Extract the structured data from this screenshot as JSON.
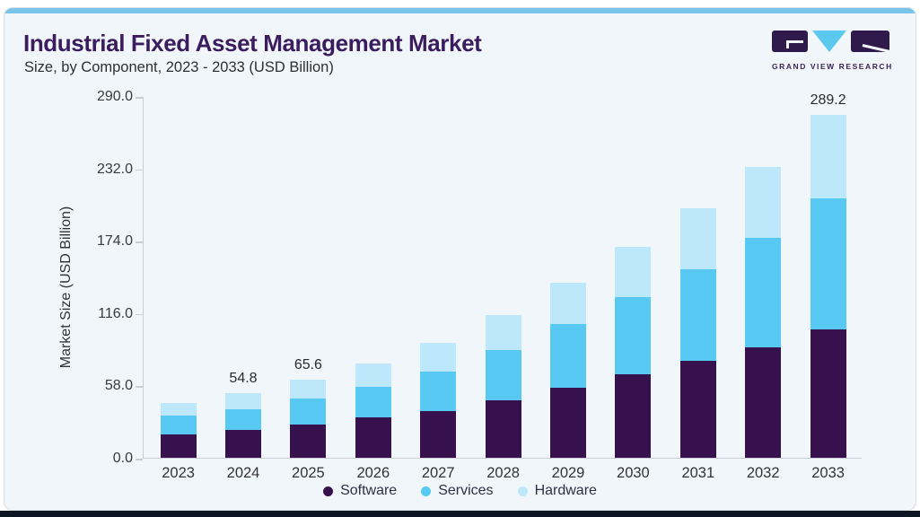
{
  "header": {
    "title": "Industrial Fixed Asset Management Market",
    "subtitle": "Size, by Component, 2023 - 2033 (USD Billion)",
    "logo_text": "GRAND VIEW RESEARCH"
  },
  "colors": {
    "card_background": "#F0F6FA",
    "top_strip": "#79C4E8",
    "bottom_strip": "#0E1522",
    "title": "#3A1C5F",
    "axis_line": "#C9CDD3",
    "software": "#36114E",
    "services": "#58C9F2",
    "hardware": "#BDE7FA"
  },
  "chart_data": {
    "type": "bar",
    "stacked": true,
    "title": "Industrial Fixed Asset Management Market Size, by Component, 2023 - 2033 (USD Billion)",
    "xlabel": "",
    "ylabel": "Market Size (USD Billion)",
    "categories": [
      "2023",
      "2024",
      "2025",
      "2026",
      "2027",
      "2028",
      "2029",
      "2030",
      "2031",
      "2032",
      "2033"
    ],
    "series": [
      {
        "name": "Software",
        "color": "#36114E",
        "values": [
          19.9,
          23.4,
          27.9,
          33.9,
          39.4,
          48.7,
          59.1,
          70.2,
          81.8,
          93.0,
          108.2
        ]
      },
      {
        "name": "Services",
        "color": "#58C9F2",
        "values": [
          15.7,
          17.6,
          21.9,
          26.2,
          33.6,
          42.4,
          54.0,
          65.2,
          77.5,
          92.4,
          111.0
        ]
      },
      {
        "name": "Hardware",
        "color": "#BDE7FA",
        "values": [
          10.6,
          13.8,
          15.8,
          19.7,
          23.8,
          29.5,
          34.8,
          42.9,
          51.3,
          59.9,
          70.0
        ]
      }
    ],
    "totals": [
      46.2,
      54.8,
      65.6,
      79.8,
      96.8,
      120.6,
      147.9,
      178.3,
      210.6,
      245.3,
      289.2
    ],
    "bar_labels": [
      "",
      "54.8",
      "65.6",
      "",
      "",
      "",
      "",
      "",
      "",
      "",
      "289.2"
    ],
    "y_ticks": [
      "290.0",
      "232.0",
      "174.0",
      "116.0",
      "58.0",
      "0.0"
    ],
    "ylim": [
      0,
      290
    ],
    "grid": false,
    "legend_position": "bottom"
  }
}
